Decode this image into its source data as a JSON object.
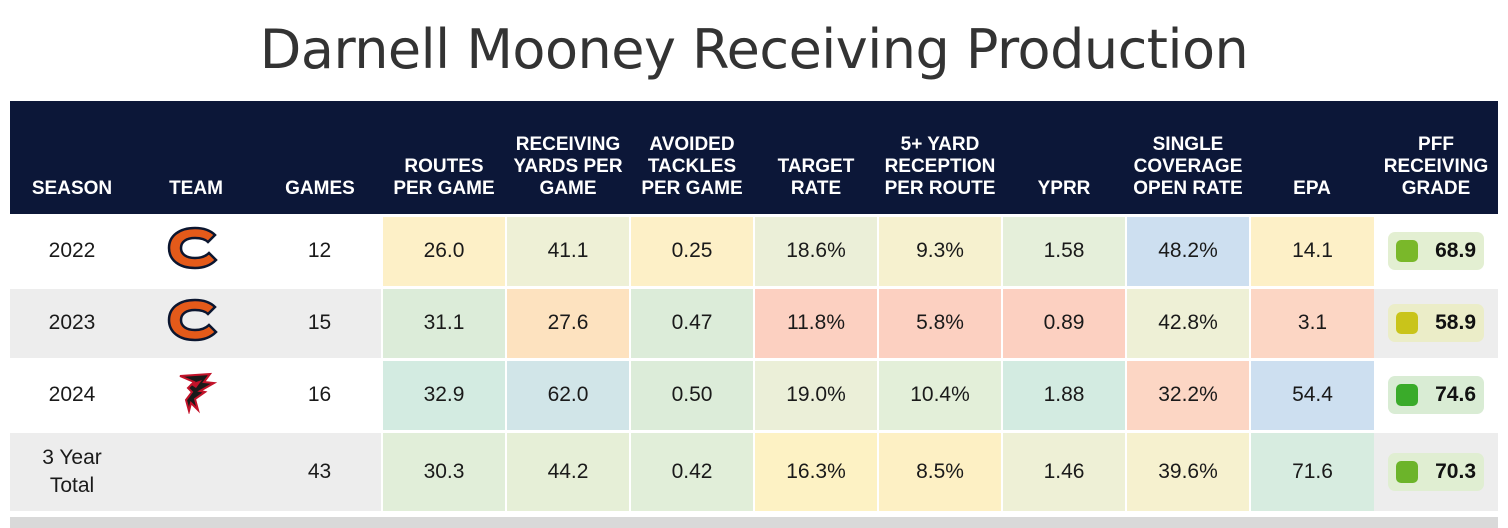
{
  "title": "Darnell Mooney Receiving Production",
  "colors": {
    "header_bg": "#0c1738",
    "bears_orange": "#e45a1a",
    "bears_navy": "#0b1630",
    "falcons_red": "#c2132a"
  },
  "chart_data": {
    "type": "table",
    "title": "Darnell Mooney Receiving Production",
    "columns": [
      {
        "key": "season",
        "label": "SEASON"
      },
      {
        "key": "team",
        "label": "TEAM"
      },
      {
        "key": "games",
        "label": "GAMES"
      },
      {
        "key": "routes",
        "label": "ROUTES PER GAME"
      },
      {
        "key": "yards",
        "label": "RECEIVING YARDS PER GAME"
      },
      {
        "key": "avoided",
        "label": "AVOIDED TACKLES PER GAME"
      },
      {
        "key": "target",
        "label": "TARGET RATE"
      },
      {
        "key": "rec5",
        "label": "5+ YARD RECEPTION PER ROUTE"
      },
      {
        "key": "yprr",
        "label": "YPRR"
      },
      {
        "key": "scor",
        "label": "SINGLE COVERAGE OPEN RATE"
      },
      {
        "key": "epa",
        "label": "EPA"
      },
      {
        "key": "grade",
        "label": "PFF RECEIVING GRADE"
      }
    ],
    "rows": [
      {
        "season": "2022",
        "team_icon": "bears-logo",
        "games": "12",
        "cells": [
          {
            "v": "26.0",
            "bg": "#fdf0c7"
          },
          {
            "v": "41.1",
            "bg": "#eef0d6"
          },
          {
            "v": "0.25",
            "bg": "#fdf0c7"
          },
          {
            "v": "18.6%",
            "bg": "#ebefd8"
          },
          {
            "v": "9.3%",
            "bg": "#f6f1cf"
          },
          {
            "v": "1.58",
            "bg": "#e5efda"
          },
          {
            "v": "48.2%",
            "bg": "#cddff0"
          },
          {
            "v": "14.1",
            "bg": "#fdf0c7"
          }
        ],
        "grade": "68.9",
        "grade_color": "#7ab82a",
        "grade_bg": "#e3efd2"
      },
      {
        "season": "2023",
        "team_icon": "bears-logo",
        "games": "15",
        "cells": [
          {
            "v": "31.1",
            "bg": "#dcecd9"
          },
          {
            "v": "27.6",
            "bg": "#fde2bf"
          },
          {
            "v": "0.47",
            "bg": "#dcecd9"
          },
          {
            "v": "11.8%",
            "bg": "#fcd0c1"
          },
          {
            "v": "5.8%",
            "bg": "#fcd0c1"
          },
          {
            "v": "0.89",
            "bg": "#fcd0c1"
          },
          {
            "v": "42.8%",
            "bg": "#eef0d6"
          },
          {
            "v": "3.1",
            "bg": "#fcd6c4"
          }
        ],
        "grade": "58.9",
        "grade_color": "#c9c41a",
        "grade_bg": "#ebedc8"
      },
      {
        "season": "2024",
        "team_icon": "falcons-logo",
        "games": "16",
        "cells": [
          {
            "v": "32.9",
            "bg": "#d3ebe1"
          },
          {
            "v": "62.0",
            "bg": "#d1e5e8"
          },
          {
            "v": "0.50",
            "bg": "#dcecd9"
          },
          {
            "v": "19.0%",
            "bg": "#ebefd8"
          },
          {
            "v": "10.4%",
            "bg": "#e3efd9"
          },
          {
            "v": "1.88",
            "bg": "#d3ebe1"
          },
          {
            "v": "32.2%",
            "bg": "#fcd6c4"
          },
          {
            "v": "54.4",
            "bg": "#cddff0"
          }
        ],
        "grade": "74.6",
        "grade_color": "#3aab2a",
        "grade_bg": "#d9ecd4"
      },
      {
        "season": "3 Year Total",
        "team_icon": "",
        "games": "43",
        "cells": [
          {
            "v": "30.3",
            "bg": "#e1eed9"
          },
          {
            "v": "44.2",
            "bg": "#e6efd7"
          },
          {
            "v": "0.42",
            "bg": "#e1eed9"
          },
          {
            "v": "16.3%",
            "bg": "#fdf2c4"
          },
          {
            "v": "8.5%",
            "bg": "#fdf0c4"
          },
          {
            "v": "1.46",
            "bg": "#eef0d6"
          },
          {
            "v": "39.6%",
            "bg": "#f6f1cf"
          },
          {
            "v": "71.6",
            "bg": "#d7ece0"
          }
        ],
        "grade": "70.3",
        "grade_color": "#6cb42a",
        "grade_bg": "#e0eed2"
      }
    ]
  }
}
